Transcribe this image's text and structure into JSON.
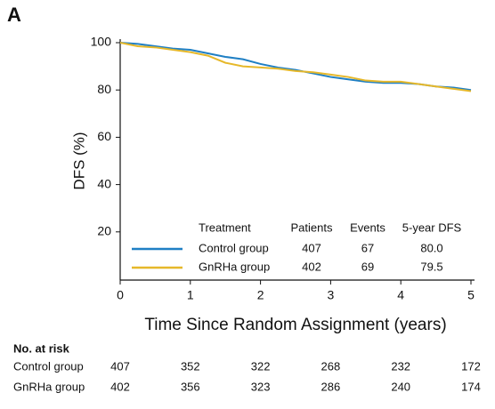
{
  "panel_label": "A",
  "chart_data": {
    "type": "line",
    "ylabel": "DFS (%)",
    "xlabel": "Time Since Random Assignment (years)",
    "xlim": [
      0,
      5
    ],
    "xticks": [
      0,
      1,
      2,
      3,
      4,
      5
    ],
    "ylim": [
      0,
      100
    ],
    "yticks": [
      20,
      40,
      60,
      80,
      100
    ],
    "x": [
      0,
      0.25,
      0.5,
      0.75,
      1,
      1.25,
      1.5,
      1.75,
      2,
      2.25,
      2.5,
      2.75,
      3,
      3.25,
      3.5,
      3.75,
      4,
      4.25,
      4.5,
      4.75,
      5
    ],
    "table_headers": [
      "Treatment",
      "Patients",
      "Events",
      "5-year DFS"
    ],
    "series": [
      {
        "name": "Control group",
        "color": "#1f7fc4",
        "stats": [
          "407",
          "67",
          "80.0"
        ],
        "values": [
          100,
          99.5,
          98.5,
          97.5,
          97,
          95.5,
          94,
          93,
          91,
          89.5,
          88.5,
          87,
          85.5,
          84.5,
          83.5,
          83,
          83,
          82.5,
          81.5,
          81,
          80
        ]
      },
      {
        "name": "GnRHa group",
        "color": "#e6b82a",
        "stats": [
          "402",
          "69",
          "79.5"
        ],
        "values": [
          100,
          98.5,
          98,
          97,
          96,
          94.5,
          91.5,
          90,
          89.5,
          89,
          88,
          87.5,
          86.5,
          85.5,
          84,
          83.5,
          83.5,
          82.5,
          81.5,
          80.5,
          79.5
        ]
      }
    ]
  },
  "at_risk": {
    "title": "No. at risk",
    "rows": [
      {
        "name": "Control group",
        "values": [
          407,
          352,
          322,
          268,
          232,
          172
        ]
      },
      {
        "name": "GnRHa group",
        "values": [
          402,
          356,
          323,
          286,
          240,
          174
        ]
      }
    ]
  }
}
